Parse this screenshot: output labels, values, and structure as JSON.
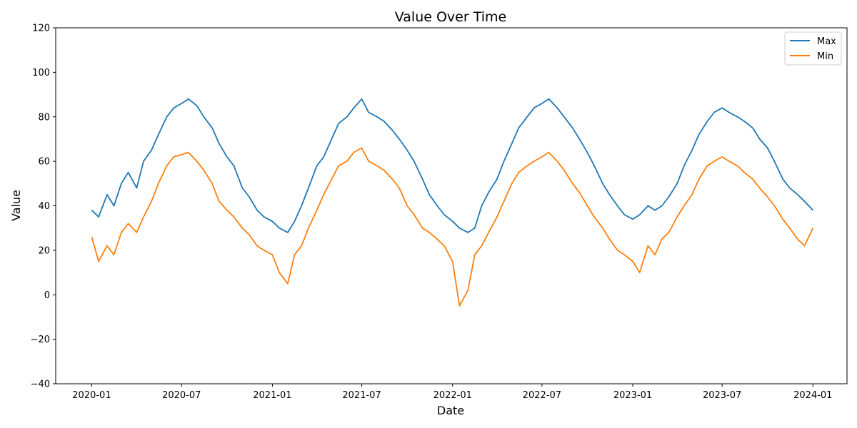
{
  "chart_data": {
    "type": "line",
    "title": "Value Over Time",
    "xlabel": "Date",
    "ylabel": "Value",
    "xlim": [
      "2019-10-20",
      "2024-03-10"
    ],
    "ylim": [
      -40,
      120
    ],
    "y_ticks": [
      -40,
      -20,
      0,
      20,
      40,
      60,
      80,
      100,
      120
    ],
    "y_tick_labels": [
      "−40",
      "−20",
      "0",
      "20",
      "40",
      "60",
      "80",
      "100",
      "120"
    ],
    "x_ticks": [
      "2020-01-01",
      "2020-07-01",
      "2021-01-01",
      "2021-07-01",
      "2022-01-01",
      "2022-07-01",
      "2023-01-01",
      "2023-07-01",
      "2024-01-01"
    ],
    "x_tick_labels": [
      "2020-01",
      "2020-07",
      "2021-01",
      "2021-07",
      "2022-01",
      "2022-07",
      "2023-01",
      "2023-07",
      "2024-01"
    ],
    "grid": false,
    "legend_position": "top-right",
    "x": [
      "2020-01-01",
      "2020-01-15",
      "2020-02-01",
      "2020-02-15",
      "2020-03-01",
      "2020-03-15",
      "2020-04-01",
      "2020-04-15",
      "2020-05-01",
      "2020-05-15",
      "2020-06-01",
      "2020-06-15",
      "2020-07-01",
      "2020-07-15",
      "2020-08-01",
      "2020-08-15",
      "2020-09-01",
      "2020-09-15",
      "2020-10-01",
      "2020-10-15",
      "2020-11-01",
      "2020-11-15",
      "2020-12-01",
      "2020-12-15",
      "2021-01-01",
      "2021-01-15",
      "2021-02-01",
      "2021-02-15",
      "2021-03-01",
      "2021-03-15",
      "2021-04-01",
      "2021-04-15",
      "2021-05-01",
      "2021-05-15",
      "2021-06-01",
      "2021-06-15",
      "2021-07-01",
      "2021-07-15",
      "2021-08-01",
      "2021-08-15",
      "2021-09-01",
      "2021-09-15",
      "2021-10-01",
      "2021-10-15",
      "2021-11-01",
      "2021-11-15",
      "2021-12-01",
      "2021-12-15",
      "2022-01-01",
      "2022-01-15",
      "2022-02-01",
      "2022-02-15",
      "2022-03-01",
      "2022-03-15",
      "2022-04-01",
      "2022-04-15",
      "2022-05-01",
      "2022-05-15",
      "2022-06-01",
      "2022-06-15",
      "2022-07-01",
      "2022-07-15",
      "2022-08-01",
      "2022-08-15",
      "2022-09-01",
      "2022-09-15",
      "2022-10-01",
      "2022-10-15",
      "2022-11-01",
      "2022-11-15",
      "2022-12-01",
      "2022-12-15",
      "2023-01-01",
      "2023-01-15",
      "2023-02-01",
      "2023-02-15",
      "2023-03-01",
      "2023-03-15",
      "2023-04-01",
      "2023-04-15",
      "2023-05-01",
      "2023-05-15",
      "2023-06-01",
      "2023-06-15",
      "2023-07-01",
      "2023-07-15",
      "2023-08-01",
      "2023-08-15",
      "2023-09-01",
      "2023-09-15",
      "2023-10-01",
      "2023-10-15",
      "2023-11-01",
      "2023-11-15",
      "2023-12-01",
      "2023-12-15",
      "2024-01-01"
    ],
    "series": [
      {
        "name": "Max",
        "color": "#1f77b4",
        "values": [
          38,
          35,
          45,
          40,
          50,
          55,
          48,
          60,
          65,
          72,
          80,
          84,
          86,
          88,
          85,
          80,
          75,
          68,
          62,
          58,
          48,
          44,
          38,
          35,
          33,
          30,
          28,
          33,
          40,
          48,
          58,
          62,
          70,
          77,
          80,
          84,
          88,
          82,
          80,
          78,
          74,
          70,
          65,
          60,
          52,
          45,
          40,
          36,
          33,
          30,
          28,
          30,
          40,
          46,
          52,
          60,
          68,
          75,
          80,
          84,
          86,
          88,
          84,
          80,
          75,
          70,
          64,
          58,
          50,
          45,
          40,
          36,
          34,
          36,
          40,
          38,
          40,
          44,
          50,
          58,
          65,
          72,
          78,
          82,
          84,
          82,
          80,
          78,
          75,
          70,
          66,
          60,
          52,
          48,
          45,
          42,
          38
        ]
      },
      {
        "name": "Min",
        "color": "#ff7f0e",
        "values": [
          26,
          15,
          22,
          18,
          28,
          32,
          28,
          35,
          42,
          50,
          58,
          62,
          63,
          64,
          60,
          56,
          50,
          42,
          38,
          35,
          30,
          27,
          22,
          20,
          18,
          10,
          5,
          18,
          22,
          30,
          38,
          45,
          52,
          58,
          60,
          64,
          66,
          60,
          58,
          56,
          52,
          48,
          40,
          36,
          30,
          28,
          25,
          22,
          15,
          -5,
          2,
          18,
          22,
          28,
          35,
          42,
          50,
          55,
          58,
          60,
          62,
          64,
          60,
          56,
          50,
          46,
          40,
          35,
          30,
          25,
          20,
          18,
          15,
          10,
          22,
          18,
          25,
          28,
          35,
          40,
          45,
          52,
          58,
          60,
          62,
          60,
          58,
          55,
          52,
          48,
          44,
          40,
          34,
          30,
          25,
          22,
          30
        ]
      }
    ]
  }
}
